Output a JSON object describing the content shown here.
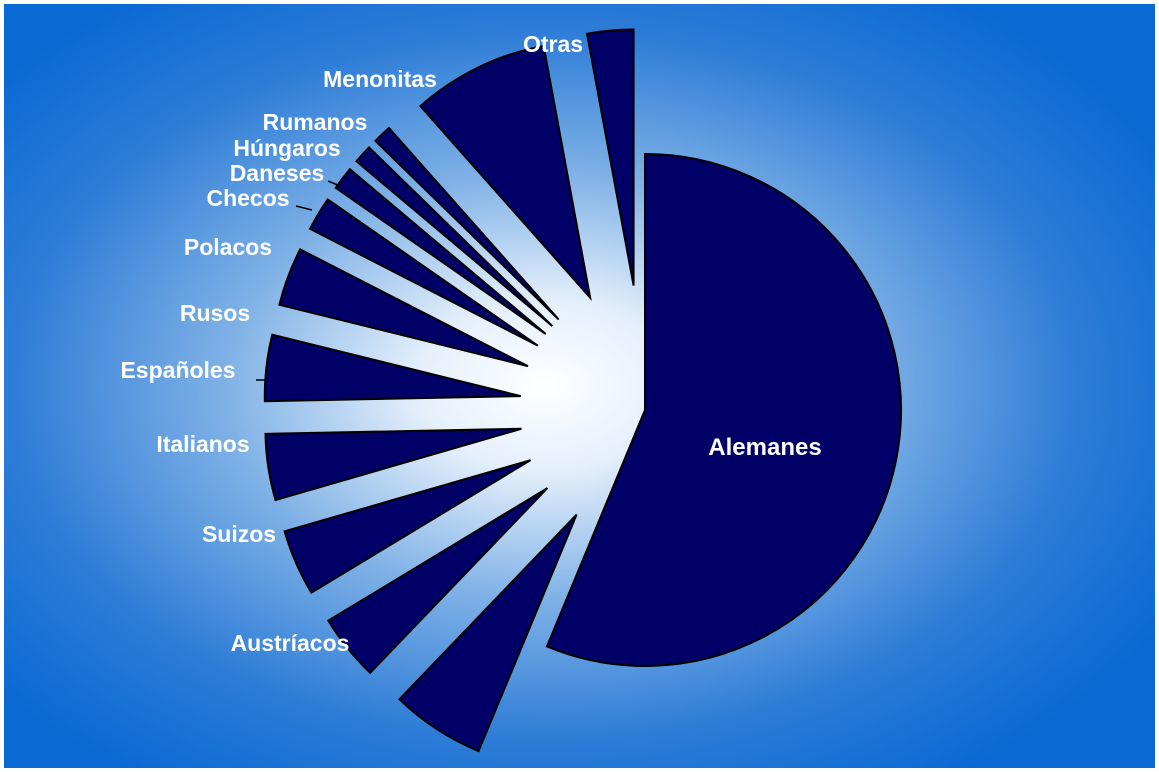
{
  "chart_data": {
    "type": "pie",
    "title": "",
    "legend": "none",
    "unit": "percent",
    "slices": [
      {
        "label": "Alemanes",
        "value": 58.0
      },
      {
        "label": "Austríacos",
        "value": 6.1
      },
      {
        "label": "Suizos",
        "value": 4.3
      },
      {
        "label": "Italianos",
        "value": 4.3
      },
      {
        "label": "Españoles",
        "value": 4.3
      },
      {
        "label": "Rusos",
        "value": 4.3
      },
      {
        "label": "Polacos",
        "value": 3.8
      },
      {
        "label": "Checos",
        "value": 2.2
      },
      {
        "label": "Daneses",
        "value": 1.5
      },
      {
        "label": "Húngaros",
        "value": 1.2
      },
      {
        "label": "Rumanos",
        "value": 1.2
      },
      {
        "label": "Menonitas",
        "value": 8.9
      },
      {
        "label": "Otras",
        "value": 3.0
      }
    ],
    "colors": {
      "slice_fill": "#000066",
      "slice_stroke": "#000000",
      "label_text": "#ffffff",
      "background_center": "#ffffff",
      "background_edge": "#0a6ad3"
    }
  }
}
